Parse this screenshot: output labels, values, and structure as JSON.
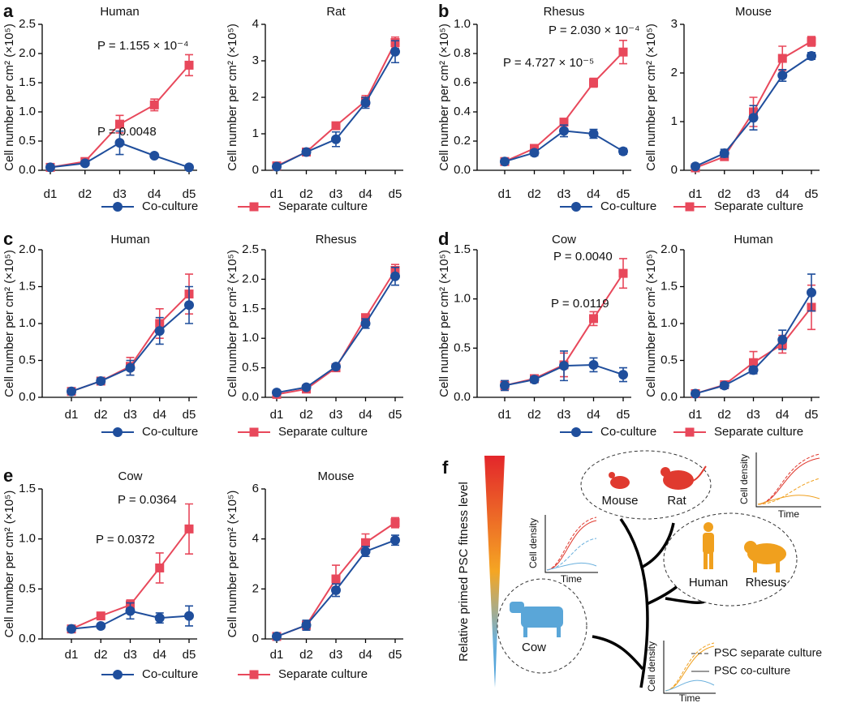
{
  "chart_data": [
    {
      "type": "line",
      "panel": "a",
      "title": "Human",
      "y_label": "Cell number per cm² (×10⁵)",
      "categories": [
        "d1",
        "d2",
        "d3",
        "d4",
        "d5"
      ],
      "ylim": [
        0,
        2.5
      ],
      "yticks": [
        {
          "value": 0,
          "label": "0.0"
        },
        0.5,
        {
          "value": 1,
          "label": "1.0"
        },
        1.5,
        {
          "value": 2,
          "label": "2.0"
        },
        2.5
      ],
      "legend": "bottom",
      "annotations": [
        "P = 0.0048",
        "P = 1.155 × 10⁻⁴"
      ],
      "series": [
        {
          "name": "Co-culture",
          "color": "#1f4e9c",
          "marker": "circle",
          "values": [
            0.05,
            0.12,
            0.47,
            0.25,
            0.05
          ],
          "errors": [
            0.02,
            0.03,
            0.2,
            0.03,
            0.01
          ]
        },
        {
          "name": "Separate culture",
          "color": "#e8485b",
          "marker": "square",
          "values": [
            0.05,
            0.15,
            0.79,
            1.12,
            1.8
          ],
          "errors": [
            0.02,
            0.03,
            0.15,
            0.1,
            0.18
          ]
        }
      ]
    },
    {
      "type": "line",
      "title": "Rat",
      "y_label": "Cell number per cm² (×10⁵)",
      "categories": [
        "d1",
        "d2",
        "d3",
        "d4",
        "d5"
      ],
      "ylim": [
        0,
        4
      ],
      "yticks": [
        0,
        1,
        2,
        3,
        4
      ],
      "series": [
        {
          "name": "Co-culture",
          "color": "#1f4e9c",
          "marker": "circle",
          "values": [
            0.1,
            0.5,
            0.85,
            1.85,
            3.25
          ],
          "errors": [
            0.05,
            0.05,
            0.2,
            0.15,
            0.3
          ]
        },
        {
          "name": "Separate culture",
          "color": "#e8485b",
          "marker": "square",
          "values": [
            0.12,
            0.5,
            1.22,
            1.9,
            3.5
          ],
          "errors": [
            0.05,
            0.05,
            0.05,
            0.15,
            0.15
          ]
        }
      ]
    },
    {
      "type": "line",
      "panel": "b",
      "title": "Rhesus",
      "y_label": "Cell number per cm² (×10⁵)",
      "categories": [
        "d1",
        "d2",
        "d3",
        "d4",
        "d5"
      ],
      "ylim": [
        0,
        1
      ],
      "yticks": [
        {
          "value": 0,
          "label": "0.0"
        },
        0.2,
        0.4,
        0.6,
        0.8,
        {
          "value": 1,
          "label": "1.0"
        }
      ],
      "legend": "bottom",
      "annotations": [
        "P = 4.727 × 10⁻⁵",
        "P = 2.030 × 10⁻⁴"
      ],
      "series": [
        {
          "name": "Co-culture",
          "color": "#1f4e9c",
          "marker": "circle",
          "values": [
            0.06,
            0.12,
            0.27,
            0.25,
            0.13
          ],
          "errors": [
            0.01,
            0.02,
            0.04,
            0.03,
            0.02
          ]
        },
        {
          "name": "Separate culture",
          "color": "#e8485b",
          "marker": "square",
          "values": [
            0.06,
            0.15,
            0.33,
            0.6,
            0.81
          ],
          "errors": [
            0.01,
            0.01,
            0.02,
            0.03,
            0.08
          ]
        }
      ]
    },
    {
      "type": "line",
      "title": "Mouse",
      "y_label": "Cell number per cm² (×10⁵)",
      "categories": [
        "d1",
        "d2",
        "d3",
        "d4",
        "d5"
      ],
      "ylim": [
        0,
        3
      ],
      "yticks": [
        0,
        1,
        2,
        3
      ],
      "series": [
        {
          "name": "Co-culture",
          "color": "#1f4e9c",
          "marker": "circle",
          "values": [
            0.08,
            0.35,
            1.08,
            1.95,
            2.35
          ],
          "errors": [
            0.04,
            0.08,
            0.25,
            0.12,
            0.07
          ]
        },
        {
          "name": "Separate culture",
          "color": "#e8485b",
          "marker": "square",
          "values": [
            0.05,
            0.28,
            1.2,
            2.3,
            2.65
          ],
          "errors": [
            0.03,
            0.05,
            0.3,
            0.25,
            0.1
          ]
        }
      ]
    },
    {
      "type": "line",
      "panel": "c",
      "title": "Human",
      "y_label": "Cell number per cm² (×10⁵)",
      "categories": [
        "d1",
        "d2",
        "d3",
        "d4",
        "d5"
      ],
      "ylim": [
        0,
        2
      ],
      "yticks": [
        {
          "value": 0,
          "label": "0.0"
        },
        0.5,
        {
          "value": 1,
          "label": "1.0"
        },
        1.5,
        {
          "value": 2,
          "label": "2.0"
        }
      ],
      "legend": "bottom",
      "series": [
        {
          "name": "Co-culture",
          "color": "#1f4e9c",
          "marker": "circle",
          "values": [
            0.08,
            0.22,
            0.4,
            0.9,
            1.25
          ],
          "errors": [
            0.03,
            0.04,
            0.1,
            0.18,
            0.25
          ]
        },
        {
          "name": "Separate culture",
          "color": "#e8485b",
          "marker": "square",
          "values": [
            0.08,
            0.22,
            0.42,
            1.0,
            1.4
          ],
          "errors": [
            0.03,
            0.05,
            0.12,
            0.2,
            0.27
          ]
        }
      ]
    },
    {
      "type": "line",
      "title": "Rhesus",
      "y_label": "Cell number per cm² (×10⁵)",
      "categories": [
        "d1",
        "d2",
        "d3",
        "d4",
        "d5"
      ],
      "ylim": [
        0,
        2.5
      ],
      "yticks": [
        {
          "value": 0,
          "label": "0.0"
        },
        0.5,
        {
          "value": 1,
          "label": "1.0"
        },
        1.5,
        {
          "value": 2,
          "label": "2.0"
        },
        2.5
      ],
      "series": [
        {
          "name": "Co-culture",
          "color": "#1f4e9c",
          "marker": "circle",
          "values": [
            0.08,
            0.17,
            0.52,
            1.25,
            2.05
          ],
          "errors": [
            0.03,
            0.02,
            0.03,
            0.08,
            0.15
          ]
        },
        {
          "name": "Separate culture",
          "color": "#e8485b",
          "marker": "square",
          "values": [
            0.05,
            0.14,
            0.5,
            1.35,
            2.15
          ],
          "errors": [
            0.02,
            0.02,
            0.05,
            0.06,
            0.1
          ]
        }
      ]
    },
    {
      "type": "line",
      "panel": "d",
      "title": "Cow",
      "y_label": "Cell number per cm² (×10⁵)",
      "categories": [
        "d1",
        "d2",
        "d3",
        "d4",
        "d5"
      ],
      "ylim": [
        0,
        1.5
      ],
      "yticks": [
        {
          "value": 0,
          "label": "0.0"
        },
        0.5,
        {
          "value": 1,
          "label": "1.0"
        },
        1.5
      ],
      "legend": "bottom",
      "annotations": [
        "P = 0.0119",
        "P = 0.0040"
      ],
      "series": [
        {
          "name": "Co-culture",
          "color": "#1f4e9c",
          "marker": "circle",
          "values": [
            0.12,
            0.18,
            0.32,
            0.33,
            0.23
          ],
          "errors": [
            0.05,
            0.03,
            0.15,
            0.07,
            0.07
          ]
        },
        {
          "name": "Separate culture",
          "color": "#e8485b",
          "marker": "square",
          "values": [
            0.12,
            0.19,
            0.33,
            0.8,
            1.26
          ],
          "errors": [
            0.05,
            0.03,
            0.12,
            0.07,
            0.15
          ]
        }
      ]
    },
    {
      "type": "line",
      "title": "Human",
      "y_label": "Cell number per cm² (×10⁵)",
      "categories": [
        "d1",
        "d2",
        "d3",
        "d4",
        "d5"
      ],
      "ylim": [
        0,
        2
      ],
      "yticks": [
        {
          "value": 0,
          "label": "0.0"
        },
        0.5,
        {
          "value": 1,
          "label": "1.0"
        },
        1.5,
        {
          "value": 2,
          "label": "2.0"
        }
      ],
      "series": [
        {
          "name": "Co-culture",
          "color": "#1f4e9c",
          "marker": "circle",
          "values": [
            0.05,
            0.16,
            0.37,
            0.78,
            1.42
          ],
          "errors": [
            0.02,
            0.04,
            0.05,
            0.13,
            0.25
          ]
        },
        {
          "name": "Separate culture",
          "color": "#e8485b",
          "marker": "square",
          "values": [
            0.05,
            0.17,
            0.47,
            0.72,
            1.22
          ],
          "errors": [
            0.02,
            0.04,
            0.15,
            0.12,
            0.3
          ]
        }
      ]
    },
    {
      "type": "line",
      "panel": "e",
      "title": "Cow",
      "y_label": "Cell number per cm² (×10⁵)",
      "categories": [
        "d1",
        "d2",
        "d3",
        "d4",
        "d5"
      ],
      "ylim": [
        0,
        1.5
      ],
      "yticks": [
        {
          "value": 0,
          "label": "0.0"
        },
        0.5,
        {
          "value": 1,
          "label": "1.0"
        },
        1.5
      ],
      "legend": "bottom",
      "annotations": [
        "P = 0.0372",
        "P = 0.0364"
      ],
      "series": [
        {
          "name": "Co-culture",
          "color": "#1f4e9c",
          "marker": "circle",
          "values": [
            0.1,
            0.13,
            0.28,
            0.21,
            0.23
          ],
          "errors": [
            0.02,
            0.02,
            0.08,
            0.05,
            0.1
          ]
        },
        {
          "name": "Separate culture",
          "color": "#e8485b",
          "marker": "square",
          "values": [
            0.1,
            0.23,
            0.34,
            0.71,
            1.1
          ],
          "errors": [
            0.02,
            0.02,
            0.05,
            0.15,
            0.25
          ]
        }
      ]
    },
    {
      "type": "line",
      "title": "Mouse",
      "y_label": "Cell number per cm² (×10⁵)",
      "categories": [
        "d1",
        "d2",
        "d3",
        "d4",
        "d5"
      ],
      "ylim": [
        0,
        6
      ],
      "yticks": [
        0,
        2,
        4,
        6
      ],
      "series": [
        {
          "name": "Co-culture",
          "color": "#1f4e9c",
          "marker": "circle",
          "values": [
            0.1,
            0.55,
            1.95,
            3.5,
            3.95
          ],
          "errors": [
            0.05,
            0.2,
            0.25,
            0.2,
            0.2
          ]
        },
        {
          "name": "Separate culture",
          "color": "#e8485b",
          "marker": "square",
          "values": [
            0.1,
            0.55,
            2.4,
            3.85,
            4.65
          ],
          "errors": [
            0.05,
            0.15,
            0.55,
            0.35,
            0.2
          ]
        }
      ]
    }
  ],
  "diagram": {
    "panel": "f",
    "gradient_label": "Relative primed PSC fitness level",
    "species": [
      "Mouse",
      "Rat",
      "Human",
      "Rhesus",
      "Cow"
    ],
    "mini_plots": [
      {
        "y_label": "Cell density",
        "x_label": "Time"
      },
      {
        "y_label": "Cell density",
        "x_label": "Time"
      },
      {
        "y_label": "Cell density",
        "x_label": "Time"
      }
    ],
    "legend": [
      "PSC separate culture",
      "PSC co-culture"
    ]
  }
}
